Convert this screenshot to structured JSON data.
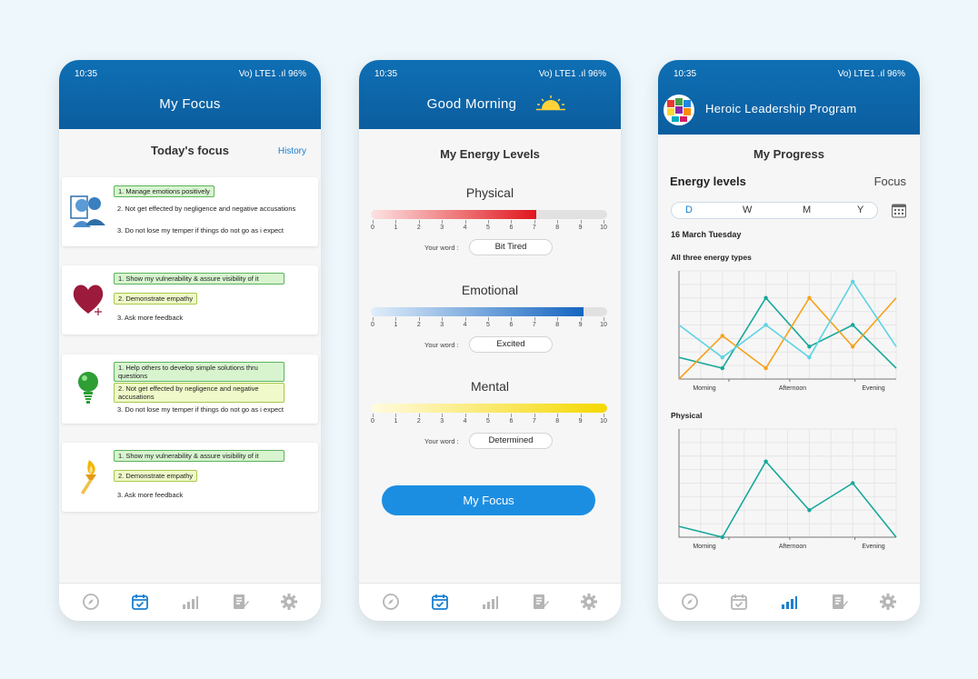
{
  "status": {
    "time": "10:35",
    "signal": "Vo) LTE1 .ıl",
    "battery": "96%"
  },
  "phone1": {
    "header_title": "My Focus",
    "today_title": "Today's focus",
    "history_link": "History",
    "cards": [
      {
        "icon": "people-icon",
        "items": [
          {
            "text": "1. Manage emotions positively",
            "style": "green"
          },
          {
            "text": "2. Not get effected by negligence and negative accusations",
            "style": "plain"
          },
          {
            "text": "3. Do not lose my temper if things do not go as i expect",
            "style": "plain"
          }
        ]
      },
      {
        "icon": "heart-icon",
        "items": [
          {
            "text": "1. Show my vulnerability & assure visibility of it",
            "style": "green"
          },
          {
            "text": "2. Demonstrate empathy",
            "style": "lime"
          },
          {
            "text": "3. Ask more feedback",
            "style": "plain"
          }
        ]
      },
      {
        "icon": "lightbulb-icon",
        "items": [
          {
            "text": "1. Help others to develop simple solutions thru questions",
            "style": "green"
          },
          {
            "text": "2. Not get effected by negligence and negative accusations",
            "style": "lime"
          },
          {
            "text": "3. Do not lose my temper if things do not go as i expect",
            "style": "plain"
          }
        ]
      },
      {
        "icon": "torch-icon",
        "items": [
          {
            "text": "1. Show my vulnerability & assure visibility of it",
            "style": "green"
          },
          {
            "text": "2. Demonstrate empathy",
            "style": "lime"
          },
          {
            "text": "3. Ask more feedback",
            "style": "plain"
          }
        ]
      }
    ]
  },
  "phone2": {
    "header_title": "Good Morning",
    "section_title": "My Energy Levels",
    "scale": [
      "0",
      "1",
      "2",
      "3",
      "4",
      "5",
      "6",
      "7",
      "8",
      "9",
      "10"
    ],
    "word_label": "Your word :",
    "energies": [
      {
        "name": "Physical",
        "value": 7,
        "word": "Bit Tired",
        "color_from": "#fde3e3",
        "color_to": "#e0161c"
      },
      {
        "name": "Emotional",
        "value": 9,
        "word": "Excited",
        "color_from": "#e1eefb",
        "color_to": "#1565c0"
      },
      {
        "name": "Mental",
        "value": 10,
        "word": "Determined",
        "color_from": "#fffbe0",
        "color_to": "#f5d800"
      }
    ],
    "button_label": "My Focus"
  },
  "phone3": {
    "header_title": "Heroic Leadership Program",
    "section_title": "My Progress",
    "energy_label": "Energy levels",
    "focus_label": "Focus",
    "segments": [
      "D",
      "W",
      "M",
      "Y"
    ],
    "date": "16 March Tuesday",
    "chart1_title": "All three energy types",
    "chart2_title": "Physical"
  },
  "chart_data": [
    {
      "type": "line",
      "title": "All three energy types",
      "x": [
        "Morning",
        "Afternoon",
        "Evening"
      ],
      "ylim": [
        0,
        10
      ],
      "grid": true,
      "series": [
        {
          "color": "#17a89b",
          "points": [
            [
              0,
              2
            ],
            [
              1,
              1
            ],
            [
              2,
              7.5
            ],
            [
              3,
              3
            ],
            [
              4,
              5
            ],
            [
              5,
              1
            ]
          ]
        },
        {
          "color": "#f7a11a",
          "points": [
            [
              0,
              0
            ],
            [
              1,
              4
            ],
            [
              2,
              1
            ],
            [
              3,
              7.5
            ],
            [
              4,
              3
            ],
            [
              5,
              7.5
            ]
          ]
        },
        {
          "color": "#5dd3e6",
          "points": [
            [
              0,
              5
            ],
            [
              1,
              2
            ],
            [
              2,
              5
            ],
            [
              3,
              2
            ],
            [
              4,
              9
            ],
            [
              5,
              3
            ]
          ]
        }
      ]
    },
    {
      "type": "line",
      "title": "Physical",
      "x": [
        "Morning",
        "Afternoon",
        "Evening"
      ],
      "ylim": [
        0,
        10
      ],
      "grid": true,
      "series": [
        {
          "color": "#17a89b",
          "points": [
            [
              0,
              1
            ],
            [
              1,
              0
            ],
            [
              2,
              7
            ],
            [
              3,
              2.5
            ],
            [
              4,
              5
            ],
            [
              5,
              0
            ]
          ]
        }
      ]
    }
  ]
}
